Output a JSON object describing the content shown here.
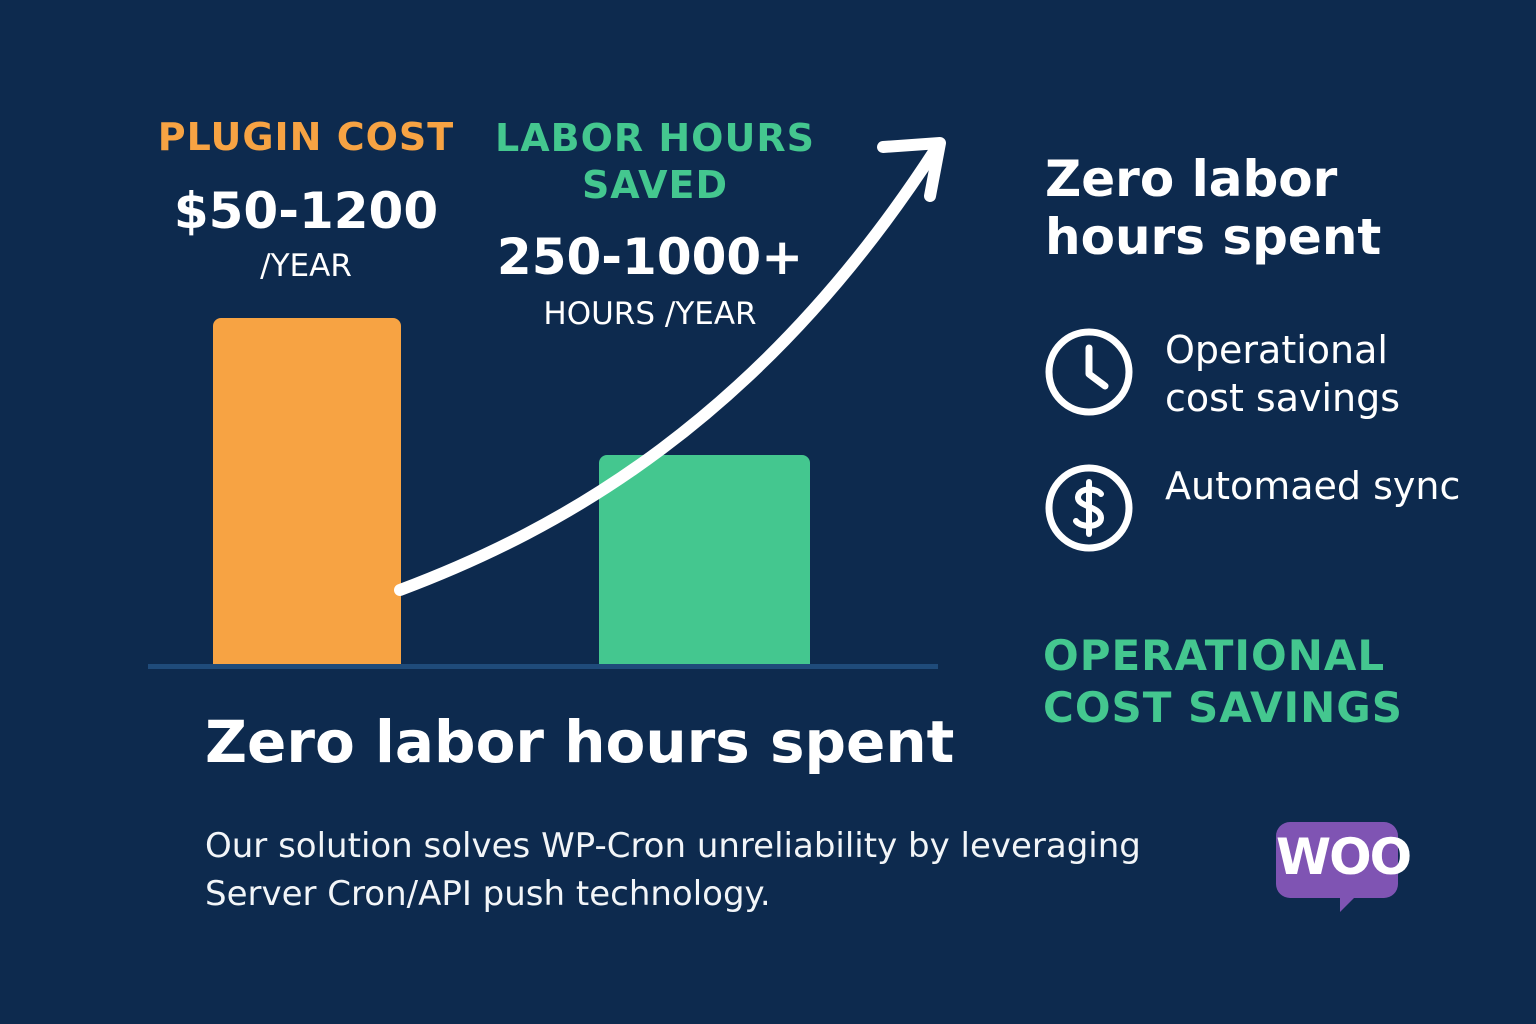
{
  "left_panel": {
    "heading": "PLUGIN COST",
    "value": "$50-1200",
    "unit": "/YEAR",
    "color": "#f7a343"
  },
  "middle_panel": {
    "heading": "LABOR HOURS SAVED",
    "value": "250-1000+",
    "unit": "HOURS /YEAR",
    "color": "#44c78f"
  },
  "bottom_title": "Zero labor hours spent",
  "description": "Our solution solves WP-Cron unreliability by leveraging Server Cron/API push technology.",
  "right_panel": {
    "title": "Zero labor hours spent",
    "features": [
      {
        "icon": "clock-icon",
        "label": "Operational cost savings"
      },
      {
        "icon": "dollar-icon",
        "label": "Automaed sync"
      }
    ],
    "savings_label": "OPERATIONAL COST SAVINGS"
  },
  "logo": {
    "text": "WOO",
    "color": "#7f54b3"
  },
  "colors": {
    "background": "#0d2a4e",
    "text": "#ffffff",
    "accent_orange": "#f7a343",
    "accent_green": "#44c78f"
  }
}
